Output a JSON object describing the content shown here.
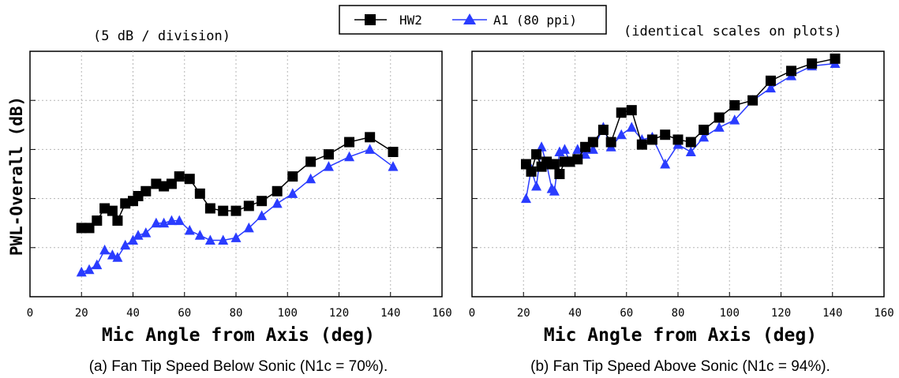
{
  "figure": {
    "annotation_left": "(5 dB / division)",
    "annotation_right": "(identical scales on plots)",
    "ylabel": "PWL-Overall (dB)",
    "legend": [
      {
        "label": "HW2",
        "color": "#000000",
        "marker": "square"
      },
      {
        "label": "A1 (80 ppi)",
        "color": "#2a3cff",
        "marker": "triangle"
      }
    ]
  },
  "chart_data": [
    {
      "type": "line",
      "caption": "(a) Fan Tip Speed Below Sonic (N1c = 70%).",
      "xlabel": "Mic Angle from Axis (deg)",
      "ylabel": "PWL-Overall (dB)",
      "xlim": [
        0,
        160
      ],
      "xticks": [
        "0",
        "20",
        "40",
        "60",
        "80",
        "100",
        "120",
        "140",
        "160"
      ],
      "ylim": [
        0,
        5
      ],
      "y_division": "5 dB / division",
      "y_tick_labels_shown": false,
      "grid": true,
      "legend_position": "top-center",
      "series": [
        {
          "name": "HW2",
          "color": "#000000",
          "marker": "square",
          "x": [
            20,
            23,
            26,
            29,
            32,
            34,
            37,
            40,
            42,
            45,
            49,
            52,
            55,
            58,
            62,
            66,
            70,
            75,
            80,
            85,
            90,
            96,
            102,
            109,
            116,
            124,
            132,
            141
          ],
          "y": [
            1.4,
            1.4,
            1.55,
            1.8,
            1.75,
            1.55,
            1.9,
            1.95,
            2.05,
            2.15,
            2.3,
            2.25,
            2.3,
            2.45,
            2.4,
            2.1,
            1.8,
            1.75,
            1.75,
            1.85,
            1.95,
            2.15,
            2.45,
            2.75,
            2.9,
            3.15,
            3.25,
            2.95
          ]
        },
        {
          "name": "A1 (80 ppi)",
          "color": "#2a3cff",
          "marker": "triangle",
          "x": [
            20,
            23,
            26,
            29,
            32,
            34,
            37,
            40,
            42,
            45,
            49,
            52,
            55,
            58,
            62,
            66,
            70,
            75,
            80,
            85,
            90,
            96,
            102,
            109,
            116,
            124,
            132,
            141
          ],
          "y": [
            0.5,
            0.55,
            0.65,
            0.95,
            0.85,
            0.8,
            1.05,
            1.15,
            1.25,
            1.3,
            1.5,
            1.5,
            1.55,
            1.55,
            1.35,
            1.25,
            1.15,
            1.15,
            1.2,
            1.4,
            1.65,
            1.9,
            2.1,
            2.4,
            2.65,
            2.85,
            3.0,
            2.65
          ]
        }
      ]
    },
    {
      "type": "line",
      "caption": "(b) Fan Tip Speed Above Sonic (N1c = 94%).",
      "xlabel": "Mic Angle from Axis (deg)",
      "ylabel": "PWL-Overall (dB)",
      "xlim": [
        0,
        160
      ],
      "xticks": [
        "0",
        "20",
        "40",
        "60",
        "80",
        "100",
        "120",
        "140",
        "160"
      ],
      "ylim": [
        0,
        5
      ],
      "y_division": "5 dB / division",
      "y_tick_labels_shown": false,
      "grid": true,
      "series": [
        {
          "name": "HW2",
          "color": "#000000",
          "marker": "square",
          "x": [
            21,
            23,
            25,
            27,
            29,
            31,
            32,
            34,
            36,
            38,
            41,
            44,
            47,
            51,
            54,
            58,
            62,
            66,
            70,
            75,
            80,
            85,
            90,
            96,
            102,
            109,
            116,
            124,
            132,
            141
          ],
          "y": [
            2.7,
            2.55,
            2.9,
            2.65,
            2.75,
            2.7,
            2.7,
            2.5,
            2.75,
            2.75,
            2.8,
            3.05,
            3.15,
            3.4,
            3.15,
            3.75,
            3.8,
            3.1,
            3.2,
            3.3,
            3.2,
            3.15,
            3.4,
            3.65,
            3.9,
            4.0,
            4.4,
            4.6,
            4.75,
            4.85
          ]
        },
        {
          "name": "A1 (80 ppi)",
          "color": "#2a3cff",
          "marker": "triangle",
          "x": [
            21,
            23,
            25,
            27,
            29,
            31,
            32,
            34,
            36,
            38,
            41,
            44,
            47,
            51,
            54,
            58,
            62,
            66,
            70,
            75,
            80,
            85,
            90,
            96,
            102,
            109,
            116,
            124,
            132,
            141
          ],
          "y": [
            2.0,
            2.6,
            2.25,
            3.05,
            2.7,
            2.2,
            2.15,
            2.95,
            3.0,
            2.75,
            3.0,
            2.9,
            3.0,
            3.45,
            3.05,
            3.3,
            3.45,
            3.2,
            3.25,
            2.7,
            3.1,
            2.95,
            3.25,
            3.45,
            3.6,
            4.0,
            4.25,
            4.5,
            4.7,
            4.75
          ]
        }
      ]
    }
  ]
}
